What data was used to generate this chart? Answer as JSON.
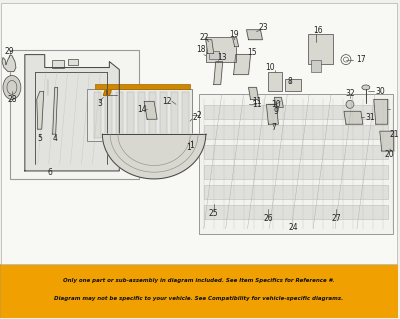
{
  "bg_color": "#f0f0ec",
  "white": "#ffffff",
  "line_color": "#444444",
  "light_gray": "#e8e8e4",
  "mid_gray": "#cccccc",
  "orange_bg": "#f0a000",
  "warning_line1": "Only one part or sub-assembly in diagram included. See Item Specifics for Reference #.",
  "warning_line2": "Diagram may not be specific to your vehicle. See Compatibility for vehicle-specific diagrams.",
  "figsize": [
    4.0,
    3.19
  ],
  "dpi": 100
}
